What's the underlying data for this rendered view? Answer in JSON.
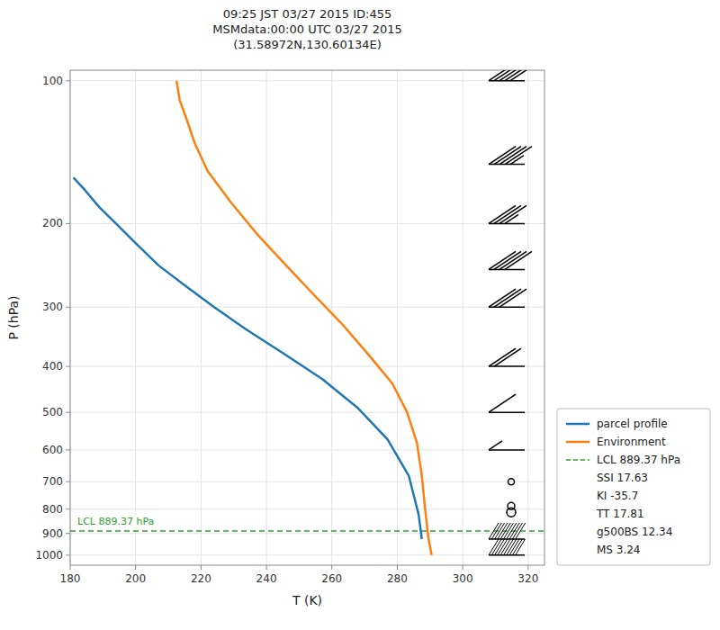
{
  "chart_data": {
    "type": "line",
    "title": "09:25 JST 03/27 2015  ID:455\nMSMdata:00:00 UTC 03/27 2015\n(31.58972N,130.60134E)",
    "xlabel": "T (K)",
    "ylabel": "P (hPa)",
    "xlim": [
      180,
      325
    ],
    "ylim": [
      1050,
      95
    ],
    "xticks": [
      180,
      200,
      220,
      240,
      260,
      280,
      300,
      320
    ],
    "yticks": [
      100,
      200,
      300,
      400,
      500,
      600,
      700,
      800,
      900,
      1000
    ],
    "log": "y",
    "grid": true,
    "legend": "lower right",
    "series": [
      {
        "name": "parcel profile",
        "color": "#1f77b4",
        "x": [
          181.0,
          184.5,
          189.0,
          194.0,
          200.0,
          207.0,
          215.0,
          224.0,
          234.0,
          245.0,
          257.0,
          268.0,
          277.0,
          283.5,
          286.5,
          287.5
        ],
        "values": [
          160,
          170,
          185,
          200,
          220,
          245,
          270,
          300,
          335,
          375,
          425,
          490,
          570,
          680,
          820,
          925
        ]
      },
      {
        "name": "Environment",
        "color": "#ff7f0e",
        "x": [
          212.5,
          213.5,
          215.5,
          218.0,
          222.0,
          229.0,
          237.0,
          246.0,
          255.0,
          263.0,
          271.5,
          278.5,
          283.0,
          286.0,
          287.5,
          288.5,
          289.5,
          290.5
        ],
        "values": [
          100,
          110,
          120,
          135,
          155,
          180,
          210,
          245,
          285,
          325,
          380,
          435,
          500,
          580,
          680,
          800,
          920,
          1000
        ]
      }
    ],
    "lcl": {
      "value": 889.37,
      "label": "LCL 889.37 hPa",
      "color": "#2ca02c"
    },
    "wind_barbs": {
      "p": [
        100,
        150,
        200,
        250,
        300,
        400,
        500,
        600,
        700,
        800,
        925,
        1000
      ],
      "full_barbs": [
        5,
        4,
        3,
        4,
        3,
        2,
        1,
        0,
        -1,
        -2,
        -3,
        -3
      ],
      "half_barbs": [
        0,
        1,
        1,
        0,
        0,
        0,
        0,
        1,
        0,
        0,
        0,
        0
      ]
    },
    "index_texts": [
      "SSI 17.63",
      "KI -35.7",
      "TT 17.81",
      "g500BS 12.34",
      "MS 3.24"
    ]
  }
}
